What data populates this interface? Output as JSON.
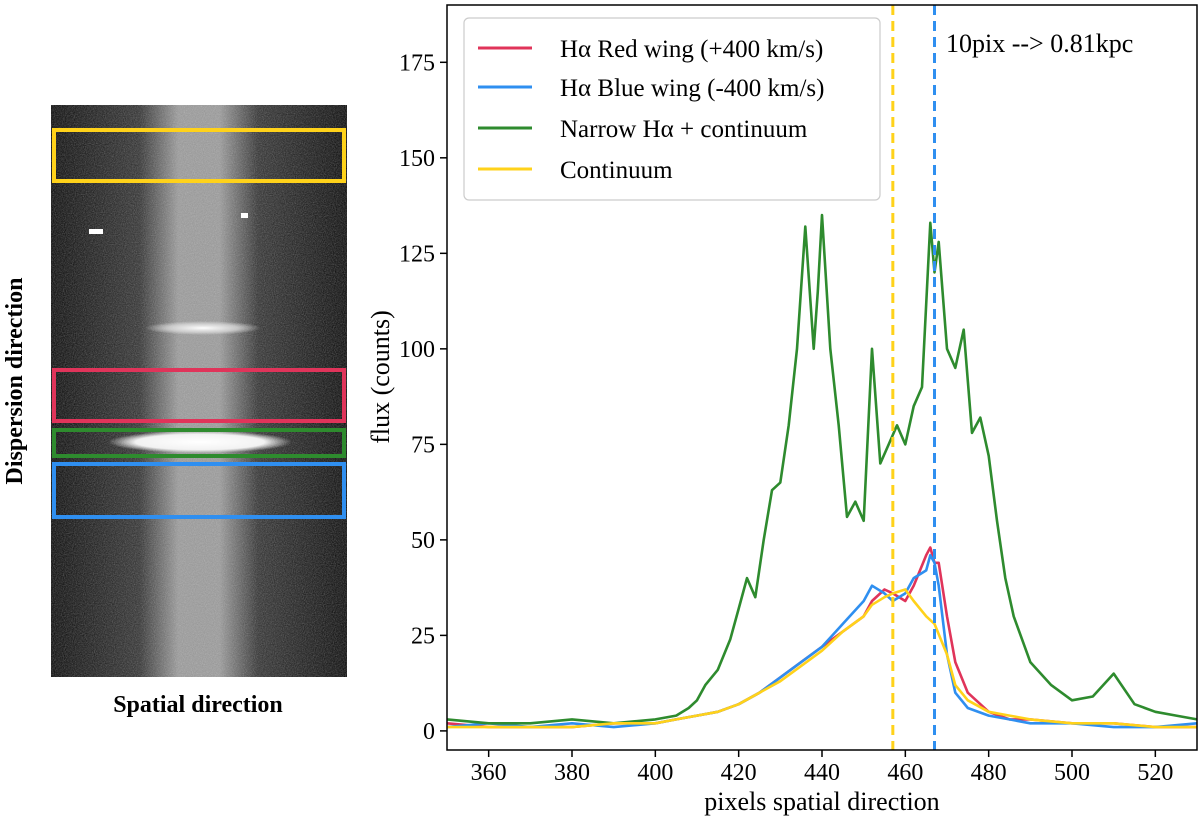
{
  "chart_data": [
    {
      "type": "image",
      "title": "",
      "xlabel": "Spatial direction",
      "ylabel": "Dispersion direction",
      "boxes": [
        {
          "name": "Continuum",
          "color": "#FFD21A"
        },
        {
          "name": "Hα Red wing",
          "color": "#E0345A"
        },
        {
          "name": "Narrow Hα + continuum",
          "color": "#2E8B2E"
        },
        {
          "name": "Hα Blue wing",
          "color": "#2F8FF0"
        }
      ]
    },
    {
      "type": "line",
      "title": "",
      "xlabel": "pixels spatial direction",
      "ylabel": "flux (counts)",
      "xlim": [
        350,
        530
      ],
      "ylim": [
        -5,
        190
      ],
      "xticks": [
        360,
        380,
        400,
        420,
        440,
        460,
        480,
        500,
        520
      ],
      "yticks": [
        0,
        25,
        50,
        75,
        100,
        125,
        150,
        175
      ],
      "legend": "top-left",
      "annotation": "10pix --> 0.81kpc",
      "vlines": [
        {
          "x": 457,
          "color": "#FFD21A",
          "style": "dashed"
        },
        {
          "x": 467,
          "color": "#2F8FF0",
          "style": "dashed"
        }
      ],
      "series": [
        {
          "name": "Hα Red wing (+400 km/s)",
          "color": "#E0345A",
          "x": [
            350,
            360,
            370,
            380,
            390,
            400,
            405,
            410,
            415,
            420,
            425,
            430,
            435,
            440,
            445,
            450,
            452,
            455,
            457,
            460,
            462,
            465,
            466,
            467,
            468,
            470,
            472,
            475,
            480,
            485,
            490,
            500,
            510,
            520,
            530
          ],
          "values": [
            2,
            1,
            1,
            1,
            2,
            2,
            3,
            4,
            5,
            7,
            10,
            14,
            18,
            22,
            26,
            30,
            34,
            37,
            36,
            34,
            38,
            46,
            48,
            44,
            44,
            30,
            18,
            10,
            5,
            3,
            3,
            2,
            2,
            1,
            1
          ]
        },
        {
          "name": "Hα Blue wing (-400 km/s)",
          "color": "#2F8FF0",
          "x": [
            350,
            360,
            370,
            380,
            390,
            400,
            405,
            410,
            415,
            420,
            425,
            430,
            435,
            440,
            445,
            450,
            452,
            455,
            457,
            460,
            462,
            465,
            466,
            467,
            468,
            470,
            472,
            475,
            480,
            485,
            490,
            500,
            510,
            520,
            530
          ],
          "values": [
            1,
            2,
            1,
            2,
            1,
            2,
            3,
            4,
            5,
            7,
            10,
            14,
            18,
            22,
            28,
            34,
            38,
            36,
            34,
            36,
            40,
            42,
            46,
            44,
            38,
            20,
            10,
            6,
            4,
            3,
            2,
            2,
            1,
            1,
            2
          ]
        },
        {
          "name": "Narrow Hα + continuum",
          "color": "#2E8B2E",
          "x": [
            350,
            360,
            370,
            380,
            390,
            400,
            405,
            408,
            410,
            412,
            415,
            418,
            420,
            422,
            424,
            426,
            428,
            430,
            432,
            434,
            436,
            438,
            439,
            440,
            442,
            444,
            446,
            448,
            450,
            452,
            454,
            456,
            458,
            460,
            462,
            464,
            466,
            467,
            468,
            470,
            472,
            474,
            476,
            478,
            480,
            482,
            484,
            486,
            488,
            490,
            495,
            500,
            505,
            510,
            515,
            520,
            525,
            530
          ],
          "values": [
            3,
            2,
            2,
            3,
            2,
            3,
            4,
            6,
            8,
            12,
            16,
            24,
            32,
            40,
            35,
            50,
            63,
            65,
            80,
            100,
            132,
            100,
            115,
            135,
            100,
            80,
            56,
            60,
            55,
            100,
            70,
            75,
            80,
            75,
            85,
            90,
            133,
            120,
            128,
            100,
            95,
            105,
            78,
            82,
            72,
            55,
            40,
            30,
            24,
            18,
            12,
            8,
            9,
            15,
            7,
            5,
            4,
            3
          ]
        },
        {
          "name": "Continuum",
          "color": "#FFD21A",
          "x": [
            350,
            360,
            370,
            380,
            390,
            400,
            405,
            410,
            415,
            420,
            425,
            430,
            435,
            440,
            445,
            450,
            452,
            455,
            457,
            460,
            462,
            465,
            467,
            470,
            472,
            475,
            480,
            485,
            490,
            500,
            510,
            520,
            530
          ],
          "values": [
            1,
            1,
            1,
            1,
            2,
            2,
            3,
            4,
            5,
            7,
            10,
            13,
            17,
            21,
            26,
            30,
            33,
            35,
            36,
            37,
            34,
            30,
            28,
            20,
            12,
            8,
            5,
            4,
            3,
            2,
            2,
            1,
            1
          ]
        }
      ]
    }
  ]
}
